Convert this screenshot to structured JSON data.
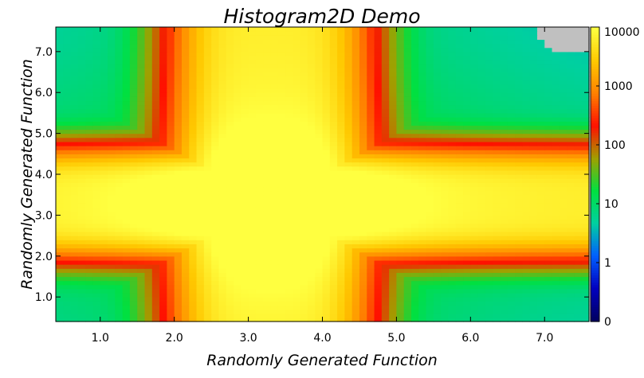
{
  "chart_data": {
    "type": "heatmap",
    "title": "Histogram2D Demo",
    "xlabel": "Randomly Generated Function",
    "ylabel": "Randomly Generated Function",
    "xlim": [
      0.4,
      7.6
    ],
    "ylim": [
      0.4,
      7.6
    ],
    "x_ticks": [
      1.0,
      2.0,
      3.0,
      4.0,
      5.0,
      6.0,
      7.0
    ],
    "x_tick_labels": [
      "1.0",
      "2.0",
      "3.0",
      "4.0",
      "5.0",
      "6.0",
      "7.0"
    ],
    "y_ticks": [
      1.0,
      2.0,
      3.0,
      4.0,
      5.0,
      6.0,
      7.0
    ],
    "y_tick_labels": [
      "1.0",
      "2.0",
      "3.0",
      "4.0",
      "5.0",
      "6.0",
      "7.0"
    ],
    "colorbar": {
      "scale": "log",
      "ticks": [
        0,
        1,
        10,
        100,
        1000,
        10000
      ],
      "labels": [
        "0",
        "1",
        "10",
        "100",
        "1000",
        "10000"
      ],
      "empty_bin_color": "#c0c0c0"
    },
    "grid": false,
    "colormap_stops": [
      "#000060",
      "#0000c0",
      "#0060ff",
      "#00d0a0",
      "#00e040",
      "#a0a000",
      "#ff1000",
      "#ff8000",
      "#ffc800",
      "#ffff40"
    ],
    "bins": 72,
    "peak": {
      "x": 3.3,
      "y": 3.3,
      "count": 12000
    }
  }
}
